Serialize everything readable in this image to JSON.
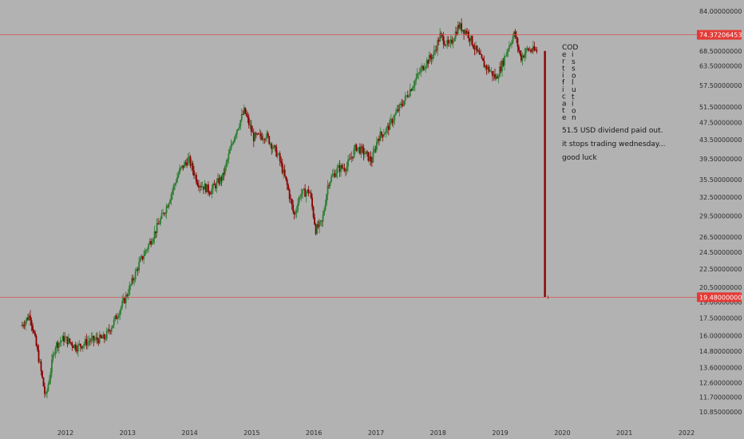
{
  "chart_data": {
    "type": "candlestick",
    "scale": "log",
    "colors": {
      "background": "#b2b2b2",
      "up": "#2e7d32",
      "down": "#8b0000",
      "level_line": "#d9534f",
      "price_tag": "#e53935",
      "axis_text": "#2c2c2c"
    },
    "x_ticks": [
      "2012",
      "2013",
      "2014",
      "2015",
      "2016",
      "2017",
      "2018",
      "2019",
      "2020",
      "2021",
      "2022"
    ],
    "y_ticks": [
      "84.00000000",
      "68.50000000",
      "63.50000000",
      "57.50000000",
      "51.50000000",
      "47.50000000",
      "43.50000000",
      "39.50000000",
      "35.50000000",
      "32.50000000",
      "29.50000000",
      "26.50000000",
      "24.50000000",
      "22.50000000",
      "20.50000000",
      "19.00000000",
      "17.50000000",
      "16.00000000",
      "14.80000000",
      "13.60000000",
      "12.60000000",
      "11.70000000",
      "10.85000000"
    ],
    "y_range": [
      10.5,
      86.0
    ],
    "price_tags": [
      {
        "label": "74.37206453",
        "value": 74.37206453
      },
      {
        "label": "19.48000000",
        "value": 19.48
      }
    ],
    "anchors": [
      {
        "date": 2011.3,
        "price": 16.8
      },
      {
        "date": 2011.45,
        "price": 17.8
      },
      {
        "date": 2011.6,
        "price": 14.0
      },
      {
        "date": 2011.7,
        "price": 11.6
      },
      {
        "date": 2011.85,
        "price": 15.2
      },
      {
        "date": 2012.0,
        "price": 15.8
      },
      {
        "date": 2012.2,
        "price": 15.1
      },
      {
        "date": 2012.4,
        "price": 15.6
      },
      {
        "date": 2012.65,
        "price": 15.8
      },
      {
        "date": 2012.8,
        "price": 17.2
      },
      {
        "date": 2013.0,
        "price": 19.6
      },
      {
        "date": 2013.2,
        "price": 23.0
      },
      {
        "date": 2013.45,
        "price": 27.0
      },
      {
        "date": 2013.65,
        "price": 31.0
      },
      {
        "date": 2013.85,
        "price": 37.0
      },
      {
        "date": 2014.0,
        "price": 39.5
      },
      {
        "date": 2014.15,
        "price": 35.0
      },
      {
        "date": 2014.35,
        "price": 33.5
      },
      {
        "date": 2014.55,
        "price": 36.0
      },
      {
        "date": 2014.75,
        "price": 45.0
      },
      {
        "date": 2014.9,
        "price": 50.5
      },
      {
        "date": 2015.05,
        "price": 44.0
      },
      {
        "date": 2015.25,
        "price": 44.5
      },
      {
        "date": 2015.45,
        "price": 40.0
      },
      {
        "date": 2015.6,
        "price": 34.0
      },
      {
        "date": 2015.7,
        "price": 29.5
      },
      {
        "date": 2015.8,
        "price": 33.0
      },
      {
        "date": 2015.95,
        "price": 33.5
      },
      {
        "date": 2016.05,
        "price": 27.5
      },
      {
        "date": 2016.15,
        "price": 28.5
      },
      {
        "date": 2016.25,
        "price": 35.0
      },
      {
        "date": 2016.4,
        "price": 37.5
      },
      {
        "date": 2016.55,
        "price": 38.0
      },
      {
        "date": 2016.7,
        "price": 42.0
      },
      {
        "date": 2016.85,
        "price": 40.5
      },
      {
        "date": 2016.95,
        "price": 39.0
      },
      {
        "date": 2017.05,
        "price": 44.0
      },
      {
        "date": 2017.2,
        "price": 46.0
      },
      {
        "date": 2017.35,
        "price": 50.0
      },
      {
        "date": 2017.5,
        "price": 54.0
      },
      {
        "date": 2017.65,
        "price": 59.0
      },
      {
        "date": 2017.8,
        "price": 64.0
      },
      {
        "date": 2017.95,
        "price": 67.5
      },
      {
        "date": 2018.05,
        "price": 74.0
      },
      {
        "date": 2018.2,
        "price": 70.0
      },
      {
        "date": 2018.35,
        "price": 78.0
      },
      {
        "date": 2018.5,
        "price": 75.0
      },
      {
        "date": 2018.6,
        "price": 70.0
      },
      {
        "date": 2018.75,
        "price": 64.0
      },
      {
        "date": 2018.85,
        "price": 62.0
      },
      {
        "date": 2018.95,
        "price": 59.5
      },
      {
        "date": 2019.05,
        "price": 64.0
      },
      {
        "date": 2019.15,
        "price": 70.0
      },
      {
        "date": 2019.25,
        "price": 75.0
      },
      {
        "date": 2019.35,
        "price": 66.0
      },
      {
        "date": 2019.45,
        "price": 69.0
      },
      {
        "date": 2019.6,
        "price": 68.5
      }
    ],
    "final_drop": {
      "date": 2019.72,
      "from": 68.5,
      "to": 19.48
    },
    "annotations": {
      "vertical_words": [
        "COD",
        "e",
        "r",
        "t",
        "i",
        "f",
        "i",
        "c",
        "a",
        "t",
        "e"
      ],
      "vertical_words_2": [
        "i",
        "s",
        "s",
        "o",
        "l",
        "u",
        "t",
        "i",
        "o",
        "n"
      ],
      "note_lines": [
        "51.5 USD dividend paid out.",
        "it stops trading wednesday...",
        "good luck"
      ]
    }
  }
}
